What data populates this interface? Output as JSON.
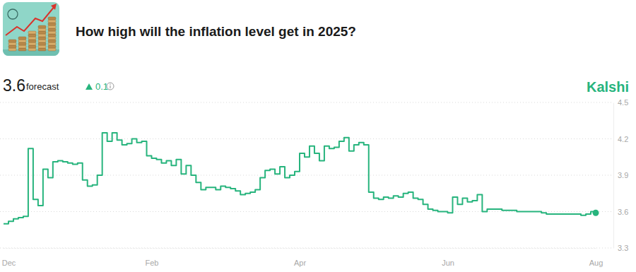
{
  "chart_data": {
    "type": "line",
    "title": "How high will the inflation level get in 2025?",
    "source": "Kalshi",
    "forecast": {
      "value": 3.6,
      "label": "forecast",
      "change": 0.1
    },
    "categories": [
      null,
      "Dec",
      null,
      null,
      null,
      null,
      null,
      null,
      null,
      null,
      null,
      null,
      null,
      null,
      null,
      null,
      null,
      null,
      null,
      null,
      null,
      null,
      null,
      null,
      null,
      null,
      null,
      null,
      null,
      null,
      "Feb",
      null,
      null,
      null,
      null,
      null,
      null,
      null,
      null,
      null,
      null,
      null,
      null,
      null,
      null,
      null,
      null,
      null,
      null,
      null,
      null,
      null,
      null,
      null,
      null,
      null,
      null,
      null,
      null,
      null,
      "Apr",
      null,
      null,
      null,
      null,
      null,
      null,
      null,
      null,
      null,
      null,
      null,
      null,
      null,
      null,
      null,
      null,
      null,
      null,
      null,
      null,
      null,
      null,
      null,
      null,
      null,
      null,
      null,
      null,
      null,
      "Jun",
      null,
      null,
      null,
      null,
      null,
      null,
      null,
      null,
      null,
      null,
      null,
      null,
      null,
      null,
      null,
      null,
      null,
      null,
      null,
      null,
      null,
      null,
      null,
      null,
      null,
      null,
      null,
      null,
      null,
      "Aug"
    ],
    "values": [
      3.5,
      3.52,
      3.54,
      3.55,
      3.56,
      4.12,
      3.7,
      3.65,
      3.95,
      3.88,
      4.01,
      4.02,
      4.01,
      4.0,
      3.99,
      4.0,
      3.86,
      3.81,
      3.82,
      3.9,
      4.25,
      4.18,
      4.25,
      4.19,
      4.15,
      4.16,
      4.2,
      4.17,
      4.18,
      4.06,
      4.04,
      4.03,
      4.0,
      4.02,
      3.98,
      4.03,
      3.91,
      3.98,
      3.9,
      3.84,
      3.78,
      3.8,
      3.8,
      3.78,
      3.81,
      3.8,
      3.79,
      3.77,
      3.74,
      3.75,
      3.76,
      3.78,
      3.88,
      3.94,
      3.95,
      3.91,
      3.97,
      3.88,
      3.9,
      3.93,
      4.08,
      4.05,
      4.14,
      4.08,
      4.02,
      4.14,
      4.12,
      4.13,
      4.18,
      4.21,
      4.1,
      4.15,
      4.17,
      4.15,
      3.76,
      3.71,
      3.7,
      3.72,
      3.71,
      3.73,
      3.72,
      3.75,
      3.76,
      3.71,
      3.7,
      3.66,
      3.62,
      3.61,
      3.6,
      3.6,
      3.59,
      3.72,
      3.66,
      3.71,
      3.68,
      3.69,
      3.74,
      3.6,
      3.62,
      3.62,
      3.62,
      3.61,
      3.61,
      3.61,
      3.6,
      3.6,
      3.6,
      3.6,
      3.6,
      3.59,
      3.58,
      3.58,
      3.58,
      3.58,
      3.58,
      3.58,
      3.58,
      3.57,
      3.58,
      3.6,
      3.59
    ],
    "color": "#27b47d",
    "line_style": "step",
    "marker": "last",
    "ylim": [
      3.3,
      4.5
    ],
    "yticks": [
      3.3,
      3.6,
      3.9,
      4.2,
      4.5
    ],
    "grid": true
  }
}
